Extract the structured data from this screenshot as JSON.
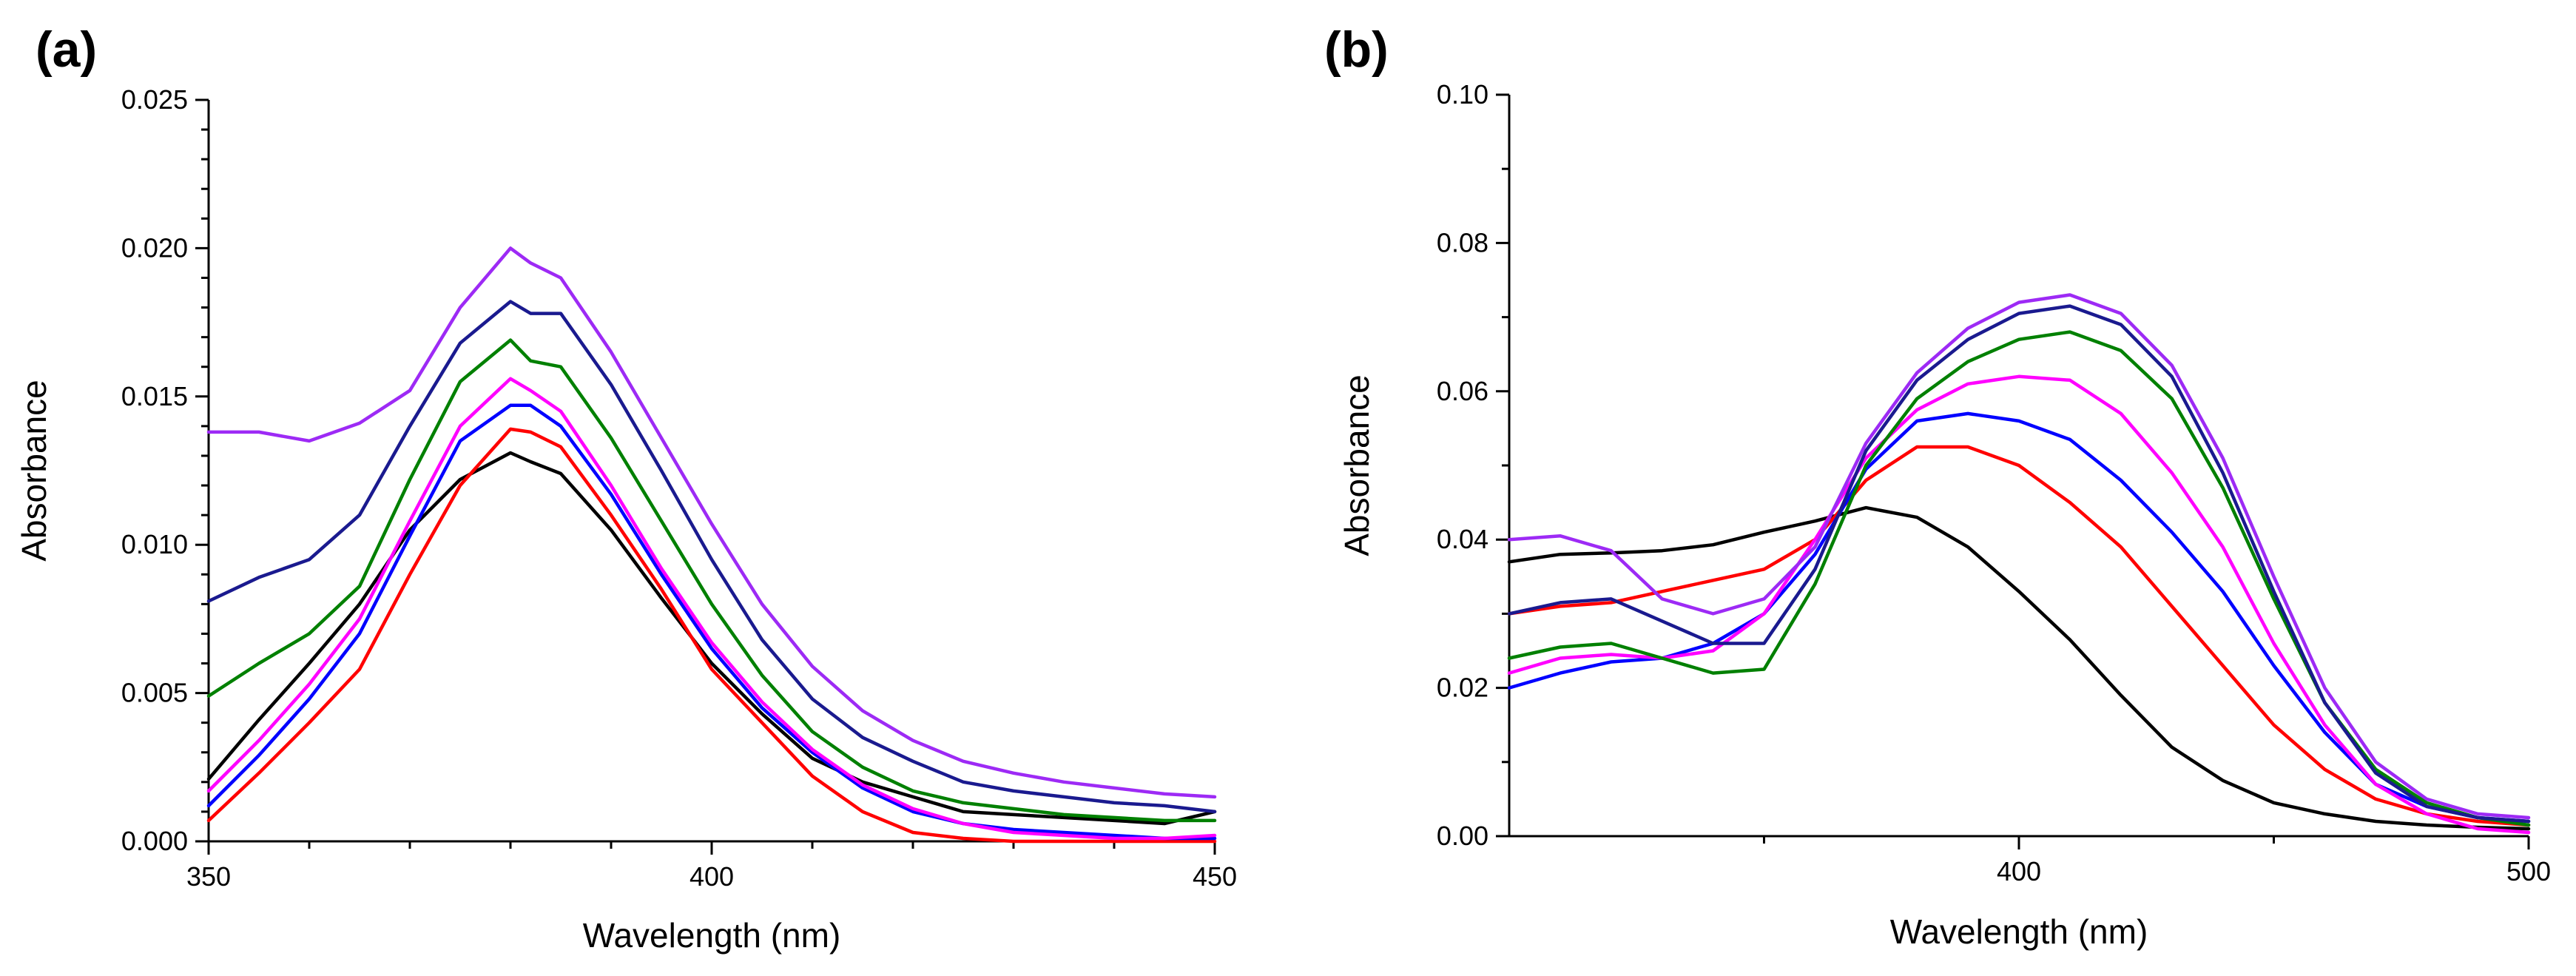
{
  "chart_data": [
    {
      "panel": "(a)",
      "type": "line",
      "xlabel": "Wavelength (nm)",
      "ylabel": "Absorbance",
      "xlim": [
        350,
        450
      ],
      "ylim": [
        0,
        0.025
      ],
      "xticks": [
        350,
        400,
        450
      ],
      "xtick_labels": [
        "350",
        "400",
        "450"
      ],
      "yticks": [
        0,
        0.005,
        0.01,
        0.015,
        0.02,
        0.025
      ],
      "ytick_labels": [
        "0.000",
        "0.005",
        "0.010",
        "0.015",
        "0.020",
        "0.025"
      ],
      "x": [
        350,
        355,
        360,
        365,
        370,
        375,
        380,
        382,
        385,
        390,
        395,
        400,
        405,
        410,
        415,
        420,
        425,
        430,
        435,
        440,
        445,
        450
      ],
      "series": [
        {
          "name": "black",
          "color": "#000000",
          "values": [
            0.0021,
            0.0041,
            0.006,
            0.008,
            0.0105,
            0.0122,
            0.0131,
            0.0128,
            0.0124,
            0.0105,
            0.0082,
            0.006,
            0.0043,
            0.0028,
            0.002,
            0.0015,
            0.001,
            0.0009,
            0.0008,
            0.0007,
            0.0006,
            0.001
          ]
        },
        {
          "name": "red",
          "color": "#ff0000",
          "values": [
            0.0007,
            0.0023,
            0.004,
            0.0058,
            0.009,
            0.012,
            0.0139,
            0.0138,
            0.0133,
            0.011,
            0.0085,
            0.0058,
            0.004,
            0.0022,
            0.001,
            0.0003,
            0.0001,
            0.0,
            0.0,
            0.0,
            0.0,
            0.0
          ]
        },
        {
          "name": "blue",
          "color": "#0000ff",
          "values": [
            0.0012,
            0.0029,
            0.0048,
            0.007,
            0.0103,
            0.0135,
            0.0147,
            0.0147,
            0.014,
            0.0117,
            0.009,
            0.0065,
            0.0045,
            0.003,
            0.0018,
            0.001,
            0.0006,
            0.0004,
            0.0003,
            0.0002,
            0.0001,
            0.0001
          ]
        },
        {
          "name": "magenta",
          "color": "#ff00ff",
          "values": [
            0.0017,
            0.0034,
            0.0053,
            0.0075,
            0.0108,
            0.014,
            0.0156,
            0.0152,
            0.0145,
            0.012,
            0.0092,
            0.0067,
            0.0047,
            0.0031,
            0.0019,
            0.0011,
            0.0006,
            0.0003,
            0.0002,
            0.0001,
            0.0001,
            0.0002
          ]
        },
        {
          "name": "green",
          "color": "#008000",
          "values": [
            0.0049,
            0.006,
            0.007,
            0.0086,
            0.0122,
            0.0155,
            0.0169,
            0.0162,
            0.016,
            0.0136,
            0.0108,
            0.008,
            0.0056,
            0.0037,
            0.0025,
            0.0017,
            0.0013,
            0.0011,
            0.0009,
            0.0008,
            0.0007,
            0.0007
          ]
        },
        {
          "name": "navy",
          "color": "#1a1a8f",
          "values": [
            0.0081,
            0.0089,
            0.0095,
            0.011,
            0.014,
            0.0168,
            0.0182,
            0.0178,
            0.0178,
            0.0154,
            0.0125,
            0.0095,
            0.0068,
            0.0048,
            0.0035,
            0.0027,
            0.002,
            0.0017,
            0.0015,
            0.0013,
            0.0012,
            0.001
          ]
        },
        {
          "name": "violet",
          "color": "#9d2af5",
          "values": [
            0.0138,
            0.0138,
            0.0135,
            0.0141,
            0.0152,
            0.018,
            0.02,
            0.0195,
            0.019,
            0.0165,
            0.0136,
            0.0107,
            0.008,
            0.0059,
            0.0044,
            0.0034,
            0.0027,
            0.0023,
            0.002,
            0.0018,
            0.0016,
            0.0015
          ]
        }
      ]
    },
    {
      "panel": "(b)",
      "type": "line",
      "xlabel": "Wavelength (nm)",
      "ylabel": "Absorbance",
      "xlim": [
        300,
        500
      ],
      "ylim": [
        0,
        0.1
      ],
      "xticks": [
        400,
        500
      ],
      "xtick_labels": [
        "400",
        "500"
      ],
      "xminor_ticks": [
        350,
        450
      ],
      "yticks": [
        0,
        0.02,
        0.04,
        0.06,
        0.08,
        0.1
      ],
      "ytick_labels": [
        "0.00",
        "0.02",
        "0.04",
        "0.06",
        "0.08",
        "0.10"
      ],
      "x": [
        300,
        310,
        320,
        330,
        340,
        350,
        360,
        370,
        380,
        390,
        400,
        410,
        420,
        430,
        440,
        450,
        460,
        470,
        480,
        490,
        500
      ],
      "series": [
        {
          "name": "black",
          "color": "#000000",
          "values": [
            0.037,
            0.038,
            0.0382,
            0.0385,
            0.0393,
            0.041,
            0.0425,
            0.0443,
            0.043,
            0.039,
            0.033,
            0.0265,
            0.019,
            0.012,
            0.0075,
            0.0045,
            0.003,
            0.002,
            0.0015,
            0.0012,
            0.001
          ]
        },
        {
          "name": "red",
          "color": "#ff0000",
          "values": [
            0.03,
            0.031,
            0.0315,
            0.033,
            0.0345,
            0.036,
            0.04,
            0.048,
            0.0525,
            0.0525,
            0.05,
            0.045,
            0.039,
            0.031,
            0.023,
            0.015,
            0.009,
            0.005,
            0.003,
            0.002,
            0.0015
          ]
        },
        {
          "name": "blue",
          "color": "#0000ff",
          "values": [
            0.02,
            0.022,
            0.0235,
            0.024,
            0.026,
            0.03,
            0.038,
            0.0495,
            0.056,
            0.057,
            0.056,
            0.0535,
            0.048,
            0.041,
            0.033,
            0.023,
            0.014,
            0.007,
            0.004,
            0.0025,
            0.002
          ]
        },
        {
          "name": "magenta",
          "color": "#ff00ff",
          "values": [
            0.022,
            0.024,
            0.0245,
            0.024,
            0.025,
            0.03,
            0.04,
            0.051,
            0.0575,
            0.061,
            0.062,
            0.0615,
            0.057,
            0.049,
            0.039,
            0.026,
            0.015,
            0.007,
            0.003,
            0.001,
            0.0005
          ]
        },
        {
          "name": "green",
          "color": "#008000",
          "values": [
            0.024,
            0.0255,
            0.026,
            0.024,
            0.022,
            0.0225,
            0.034,
            0.05,
            0.059,
            0.064,
            0.067,
            0.068,
            0.0655,
            0.059,
            0.047,
            0.032,
            0.018,
            0.009,
            0.0045,
            0.0025,
            0.0015
          ]
        },
        {
          "name": "navy",
          "color": "#1a1a8f",
          "values": [
            0.03,
            0.0315,
            0.032,
            0.029,
            0.026,
            0.026,
            0.036,
            0.052,
            0.0615,
            0.067,
            0.0705,
            0.0715,
            0.069,
            0.062,
            0.049,
            0.033,
            0.018,
            0.0085,
            0.004,
            0.0025,
            0.002
          ]
        },
        {
          "name": "violet",
          "color": "#9d2af5",
          "values": [
            0.04,
            0.0405,
            0.0385,
            0.032,
            0.03,
            0.032,
            0.039,
            0.053,
            0.0625,
            0.0685,
            0.072,
            0.073,
            0.0705,
            0.0635,
            0.051,
            0.035,
            0.02,
            0.01,
            0.005,
            0.003,
            0.0025
          ]
        }
      ]
    }
  ]
}
